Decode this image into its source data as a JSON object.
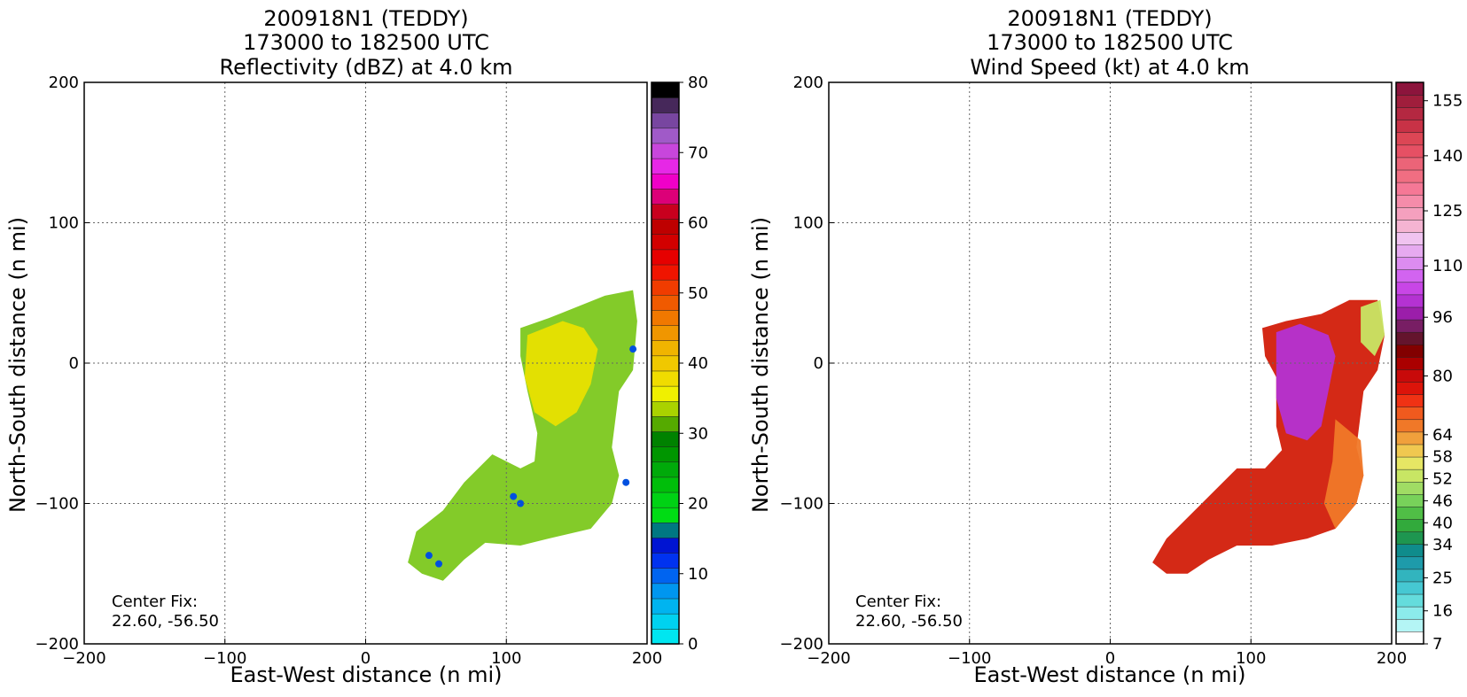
{
  "chart_data": [
    {
      "type": "heatmap",
      "title_lines": [
        "200918N1 (TEDDY)",
        "173000 to 182500 UTC",
        "Reflectivity (dBZ) at 4.0 km"
      ],
      "xlabel": "East-West distance (n mi)",
      "ylabel": "North-South distance (n mi)",
      "xlim": [
        -200,
        200
      ],
      "ylim": [
        -200,
        200
      ],
      "xticks": [
        -200,
        -100,
        0,
        100,
        200
      ],
      "yticks": [
        -200,
        -100,
        0,
        100,
        200
      ],
      "tick_labels_x": [
        "−200",
        "−100",
        "0",
        "100",
        "200"
      ],
      "tick_labels_y": [
        "−200",
        "−100",
        "0",
        "100",
        "200"
      ],
      "grid": true,
      "annotation": [
        "Center Fix:",
        "22.60, -56.50"
      ],
      "colorbar": {
        "min": 0,
        "max": 80,
        "tick_values": [
          0,
          10,
          20,
          30,
          40,
          50,
          60,
          70,
          80
        ],
        "tick_labels": [
          "0",
          "10",
          "20",
          "30",
          "40",
          "50",
          "60",
          "70",
          "80"
        ],
        "colors": [
          "#00e6f0",
          "#00d2f0",
          "#00b4f0",
          "#0096f0",
          "#0064f0",
          "#0032f0",
          "#0014d2",
          "#007882",
          "#00dc14",
          "#00d214",
          "#00be0a",
          "#00aa0a",
          "#009600",
          "#008200",
          "#55aa00",
          "#aad200",
          "#f0f000",
          "#f0dc00",
          "#f0c800",
          "#f0b400",
          "#f09600",
          "#f07800",
          "#f05a00",
          "#f03c00",
          "#f01400",
          "#e60000",
          "#d20000",
          "#be0000",
          "#c8001e",
          "#dc0078",
          "#f000c8",
          "#e628e6",
          "#c846dc",
          "#a05ac8",
          "#7846a0",
          "#46285a",
          "#000000"
        ]
      },
      "series": [
        {
          "name": "eastern band",
          "polygon": [
            [
              110,
              25
            ],
            [
              130,
              32
            ],
            [
              150,
              40
            ],
            [
              170,
              48
            ],
            [
              190,
              52
            ],
            [
              193,
              30
            ],
            [
              190,
              -5
            ],
            [
              180,
              -20
            ],
            [
              175,
              -60
            ],
            [
              180,
              -80
            ],
            [
              175,
              -100
            ],
            [
              160,
              -118
            ],
            [
              130,
              -125
            ],
            [
              110,
              -130
            ],
            [
              85,
              -128
            ],
            [
              70,
              -140
            ],
            [
              55,
              -155
            ],
            [
              40,
              -150
            ],
            [
              30,
              -142
            ],
            [
              36,
              -120
            ],
            [
              55,
              -105
            ],
            [
              70,
              -85
            ],
            [
              90,
              -65
            ],
            [
              110,
              -75
            ],
            [
              120,
              -70
            ],
            [
              122,
              -50
            ],
            [
              115,
              -20
            ],
            [
              110,
              5
            ]
          ],
          "fill": "#7cc81e"
        },
        {
          "name": "yellow core",
          "polygon": [
            [
              115,
              20
            ],
            [
              140,
              30
            ],
            [
              155,
              25
            ],
            [
              165,
              10
            ],
            [
              160,
              -15
            ],
            [
              150,
              -35
            ],
            [
              135,
              -45
            ],
            [
              120,
              -35
            ],
            [
              113,
              -10
            ]
          ],
          "fill": "#e8e000"
        },
        {
          "name": "blue patch",
          "points": [
            [
              45,
              -137
            ],
            [
              52,
              -143
            ],
            [
              105,
              -95
            ],
            [
              110,
              -100
            ],
            [
              185,
              -85
            ],
            [
              190,
              10
            ]
          ],
          "fill": "#0050e0"
        }
      ]
    },
    {
      "type": "heatmap",
      "title_lines": [
        "200918N1 (TEDDY)",
        "173000 to 182500 UTC",
        "Wind Speed (kt) at 4.0 km"
      ],
      "xlabel": "East-West distance (n mi)",
      "ylabel": "North-South distance (n mi)",
      "xlim": [
        -200,
        200
      ],
      "ylim": [
        -200,
        200
      ],
      "xticks": [
        -200,
        -100,
        0,
        100,
        200
      ],
      "yticks": [
        -200,
        -100,
        0,
        100,
        200
      ],
      "tick_labels_x": [
        "−200",
        "−100",
        "0",
        "100",
        "200"
      ],
      "tick_labels_y": [
        "−200",
        "−100",
        "0",
        "100",
        "200"
      ],
      "grid": true,
      "annotation": [
        "Center Fix:",
        "22.60, -56.50"
      ],
      "colorbar": {
        "min": 7,
        "max": 160,
        "tick_values": [
          7,
          16,
          25,
          34,
          40,
          46,
          52,
          58,
          64,
          80,
          96,
          110,
          125,
          140,
          155
        ],
        "tick_labels": [
          "7",
          "16",
          "25",
          "34",
          "40",
          "46",
          "52",
          "58",
          "64",
          "80",
          "96",
          "110",
          "125",
          "140",
          "155"
        ],
        "colors": [
          "#ffffff",
          "#b4f5f5",
          "#8cebeb",
          "#64dcdc",
          "#46c8d2",
          "#32b4be",
          "#1e9baa",
          "#0f8c8c",
          "#1e9650",
          "#32aa3c",
          "#50be46",
          "#78d25a",
          "#a0dc64",
          "#c8e664",
          "#e6e664",
          "#f0c850",
          "#f0a03c",
          "#f07828",
          "#f05a1e",
          "#f03214",
          "#dc140a",
          "#c80a0a",
          "#aa0000",
          "#820000",
          "#64142d",
          "#781e64",
          "#9b1eaa",
          "#b432d2",
          "#c846e6",
          "#d264f0",
          "#dc8cf0",
          "#e6aaf0",
          "#f0c3f0",
          "#f5b4d2",
          "#f5a0be",
          "#f58caa",
          "#f57896",
          "#f06e82",
          "#eb6478",
          "#e65064",
          "#dc4655",
          "#c83246",
          "#b42841",
          "#a01e3c",
          "#8c143c"
        ]
      },
      "series": [
        {
          "name": "eastern band",
          "polygon": [
            [
              108,
              25
            ],
            [
              125,
              30
            ],
            [
              150,
              35
            ],
            [
              170,
              45
            ],
            [
              190,
              45
            ],
            [
              195,
              20
            ],
            [
              190,
              -5
            ],
            [
              180,
              -20
            ],
            [
              175,
              -60
            ],
            [
              180,
              -80
            ],
            [
              175,
              -100
            ],
            [
              160,
              -118
            ],
            [
              140,
              -125
            ],
            [
              115,
              -130
            ],
            [
              90,
              -130
            ],
            [
              70,
              -140
            ],
            [
              55,
              -150
            ],
            [
              40,
              -150
            ],
            [
              30,
              -142
            ],
            [
              40,
              -125
            ],
            [
              55,
              -110
            ],
            [
              70,
              -95
            ],
            [
              90,
              -75
            ],
            [
              110,
              -75
            ],
            [
              122,
              -62
            ],
            [
              118,
              -45
            ],
            [
              118,
              -10
            ],
            [
              110,
              5
            ]
          ],
          "fill": "#d21e0a"
        },
        {
          "name": "purple core",
          "polygon": [
            [
              118,
              22
            ],
            [
              135,
              28
            ],
            [
              155,
              20
            ],
            [
              160,
              5
            ],
            [
              155,
              -20
            ],
            [
              150,
              -45
            ],
            [
              140,
              -55
            ],
            [
              125,
              -50
            ],
            [
              118,
              -25
            ]
          ],
          "fill": "#b432d2"
        },
        {
          "name": "orange edge",
          "polygon": [
            [
              160,
              -40
            ],
            [
              178,
              -55
            ],
            [
              180,
              -80
            ],
            [
              175,
              -100
            ],
            [
              160,
              -118
            ],
            [
              152,
              -100
            ],
            [
              158,
              -70
            ]
          ],
          "fill": "#f07828"
        },
        {
          "name": "yellow edge",
          "polygon": [
            [
              178,
              40
            ],
            [
              192,
              45
            ],
            [
              195,
              20
            ],
            [
              188,
              5
            ],
            [
              178,
              15
            ]
          ],
          "fill": "#c8e664"
        }
      ]
    }
  ]
}
